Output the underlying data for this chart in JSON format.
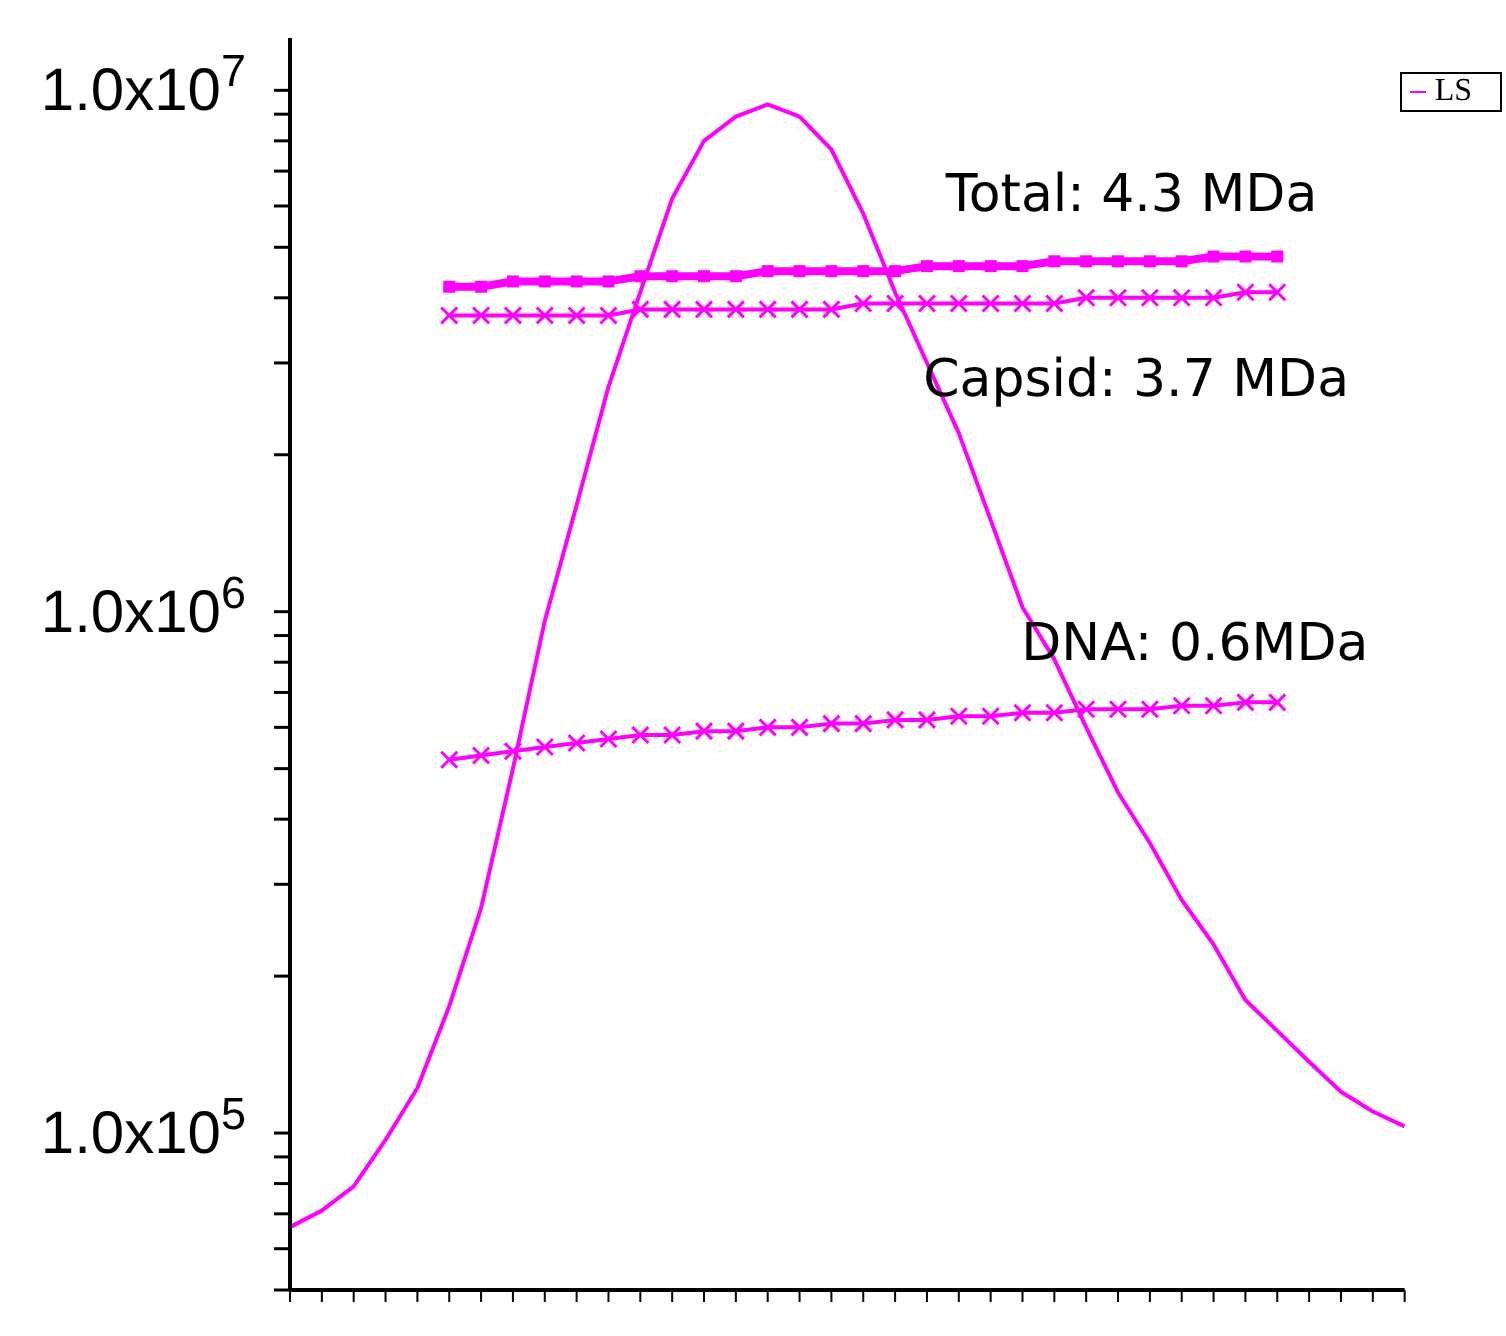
{
  "chart_data": {
    "type": "line",
    "log": "y",
    "legend": "top right",
    "tick_labels": "y",
    "categories": [
      null,
      null,
      null,
      null,
      null,
      null,
      null,
      null,
      null,
      null,
      null,
      null,
      null,
      null,
      null,
      null,
      null,
      null,
      null,
      null,
      null,
      null,
      null,
      null,
      null,
      null,
      null,
      null,
      null,
      null,
      null,
      null,
      null,
      null,
      null,
      null
    ],
    "ylim": [
      50000,
      12600000
    ],
    "yticks": [
      {
        "value": 50000,
        "label": null
      },
      {
        "value": 60000,
        "label": null
      },
      {
        "value": 70000,
        "label": null
      },
      {
        "value": 80000,
        "label": null
      },
      {
        "value": 90000,
        "label": null
      },
      {
        "value": 100000,
        "label": "1.0x10$^{5}$"
      },
      {
        "value": 200000,
        "label": null
      },
      {
        "value": 300000,
        "label": null
      },
      {
        "value": 400000,
        "label": null
      },
      {
        "value": 500000,
        "label": null
      },
      {
        "value": 600000,
        "label": null
      },
      {
        "value": 700000,
        "label": null
      },
      {
        "value": 800000,
        "label": null
      },
      {
        "value": 900000,
        "label": null
      },
      {
        "value": 1000000,
        "label": "1.0x10$^{6}$"
      },
      {
        "value": 2000000,
        "label": null
      },
      {
        "value": 3000000,
        "label": null
      },
      {
        "value": 4000000,
        "label": null
      },
      {
        "value": 5000000,
        "label": null
      },
      {
        "value": 6000000,
        "label": null
      },
      {
        "value": 7000000,
        "label": null
      },
      {
        "value": 8000000,
        "label": null
      },
      {
        "value": 9000000,
        "label": null
      },
      {
        "value": 10000000,
        "label": "1.0x10$^{7}$"
      }
    ],
    "series": [
      {
        "name": "LS",
        "color": "#ff00ff",
        "marker": "none",
        "values": [
          66000,
          71000,
          79000,
          97000,
          122000,
          175000,
          270000,
          500000,
          960000,
          1600000,
          2700000,
          4100000,
          6200000,
          8000000,
          8900000,
          9400000,
          8900000,
          7700000,
          5800000,
          4100000,
          3000000,
          2200000,
          1500000,
          1020000,
          810000,
          600000,
          450000,
          360000,
          280000,
          230000,
          180000,
          157000,
          137000,
          120000,
          110000,
          103000
        ]
      },
      {
        "color": "#ff00ff",
        "marker": "square",
        "values": [
          null,
          null,
          null,
          null,
          null,
          4200000,
          4200000,
          4300000,
          4300000,
          4300000,
          4300000,
          4400000,
          4400000,
          4400000,
          4400000,
          4500000,
          4500000,
          4500000,
          4500000,
          4500000,
          4600000,
          4600000,
          4600000,
          4600000,
          4700000,
          4700000,
          4700000,
          4700000,
          4700000,
          4800000,
          4800000,
          4800000,
          null,
          null,
          null,
          null
        ]
      },
      {
        "color": "#ff00ff",
        "marker": "cross",
        "values": [
          null,
          null,
          null,
          null,
          null,
          3700000,
          3700000,
          3700000,
          3700000,
          3700000,
          3700000,
          3800000,
          3800000,
          3800000,
          3800000,
          3800000,
          3800000,
          3800000,
          3900000,
          3900000,
          3900000,
          3900000,
          3900000,
          3900000,
          3900000,
          4000000,
          4000000,
          4000000,
          4000000,
          4000000,
          4100000,
          4100000,
          null,
          null,
          null,
          null
        ]
      },
      {
        "color": "#ff00ff",
        "marker": "cross",
        "values": [
          null,
          null,
          null,
          null,
          null,
          520000,
          530000,
          540000,
          550000,
          560000,
          570000,
          580000,
          580000,
          590000,
          590000,
          600000,
          600000,
          610000,
          610000,
          620000,
          620000,
          630000,
          630000,
          640000,
          640000,
          650000,
          650000,
          650000,
          660000,
          660000,
          670000,
          670000,
          null,
          null,
          null,
          null
        ]
      }
    ],
    "annotations": [
      "Total: 4.3 MDa",
      "Capsid: 3.7 MDa",
      "DNA: 0.6MDa"
    ]
  }
}
